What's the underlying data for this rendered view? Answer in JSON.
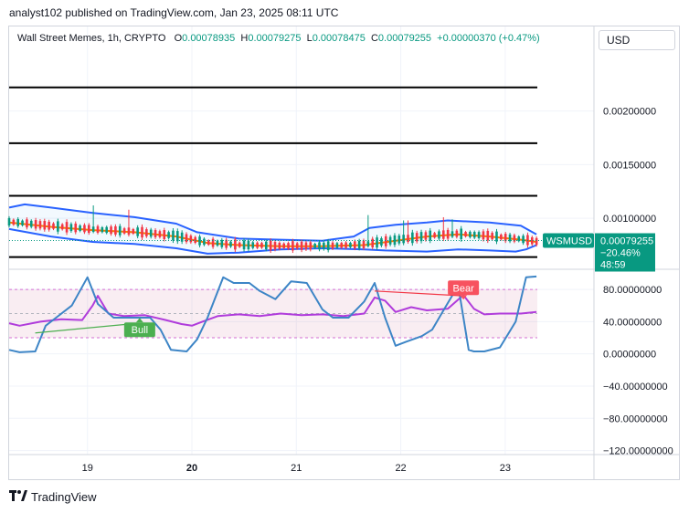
{
  "header": {
    "publisher": "analyst102 published on TradingView.com, Jan 23, 2025 08:11 UTC"
  },
  "legend": {
    "symbol": "Wall Street Memes, 1h, CRYPTO",
    "o_label": "O",
    "o_value": "0.00078935",
    "h_label": "H",
    "h_value": "0.00079275",
    "l_label": "L",
    "l_value": "0.00078475",
    "c_label": "C",
    "c_value": "0.00079255",
    "change": "+0.00000370 (+0.47%)"
  },
  "currency": "USD",
  "price_tag": {
    "symbol": "WSMUSD",
    "price": "0.00079255",
    "change": "−20.46%",
    "countdown": "48:59"
  },
  "brand": {
    "name": "TradingView"
  },
  "colors": {
    "bull": "#089981",
    "bear": "#f23645",
    "bb_band": "#2962ff",
    "bb_basis": "#f57c00",
    "rsi": "#b03cdb",
    "stoch": "#3d85c6",
    "grid": "#f0f3fa"
  },
  "chart_data": [
    {
      "type": "line",
      "pane": "price",
      "title": "",
      "y_ticks": [
        "0.00200000",
        "0.00150000",
        "0.00100000"
      ],
      "y_tick_values": [
        0.002,
        0.0015,
        0.001
      ],
      "ylim": [
        0.00055,
        0.00255
      ],
      "x_ticks": [
        "19",
        "20",
        "21",
        "22",
        "23"
      ],
      "x_tick_positions": [
        0.75,
        1.75,
        2.75,
        3.75,
        4.75
      ],
      "xlim": [
        0,
        5.6
      ],
      "horizontal_levels": [
        0.00222,
        0.0017,
        0.00121,
        0.000638
      ],
      "series": [
        {
          "name": "Upper Band",
          "x": [
            0,
            0.15,
            0.4,
            0.8,
            1.2,
            1.6,
            1.8,
            2.2,
            2.6,
            3.0,
            3.3,
            3.45,
            3.7,
            4.0,
            4.2,
            4.6,
            4.9,
            5.05
          ],
          "values": [
            0.0011,
            0.00113,
            0.0011,
            0.00105,
            0.00101,
            0.00095,
            0.00087,
            0.00081,
            0.0008,
            0.00079,
            0.00083,
            0.00091,
            0.00094,
            0.00096,
            0.00098,
            0.00096,
            0.00093,
            0.00085
          ]
        },
        {
          "name": "Basis",
          "x": [
            0,
            0.4,
            0.8,
            1.2,
            1.6,
            1.9,
            2.2,
            2.6,
            3.0,
            3.4,
            3.7,
            4.0,
            4.3,
            4.6,
            4.9,
            5.05
          ],
          "values": [
            0.00096,
            0.00092,
            0.00089,
            0.00087,
            0.00083,
            0.00077,
            0.00075,
            0.00074,
            0.00074,
            0.00075,
            0.00079,
            0.00083,
            0.00085,
            0.00083,
            0.0008,
            0.00078
          ]
        },
        {
          "name": "Lower Band",
          "x": [
            0,
            0.4,
            0.8,
            1.2,
            1.6,
            1.9,
            2.2,
            2.6,
            3.0,
            3.4,
            3.6,
            4.0,
            4.3,
            4.6,
            4.85,
            4.95,
            5.05
          ],
          "values": [
            0.0009,
            0.00083,
            0.00078,
            0.00076,
            0.00072,
            0.00067,
            0.00068,
            0.00071,
            0.00072,
            0.00071,
            0.0007,
            0.00069,
            0.00071,
            0.0007,
            0.00069,
            0.00071,
            0.00075
          ]
        }
      ],
      "price_line": 0.00079255
    },
    {
      "type": "line",
      "pane": "oscillator",
      "y_ticks": [
        "80.00000000",
        "40.00000000",
        "0.00000000",
        "−40.00000000",
        "−80.00000000",
        "−120.00000000"
      ],
      "y_tick_values": [
        80,
        40,
        0,
        -40,
        -80,
        -120
      ],
      "ylim": [
        -125,
        105
      ],
      "bands": {
        "upper": 80,
        "middle": 50,
        "lower": 20
      },
      "series": [
        {
          "name": "RSI",
          "x": [
            0,
            0.1,
            0.3,
            0.5,
            0.7,
            0.8,
            0.85,
            0.95,
            1.1,
            1.3,
            1.5,
            1.65,
            1.75,
            1.85,
            2.0,
            2.2,
            2.4,
            2.6,
            2.8,
            3.0,
            3.2,
            3.4,
            3.5,
            3.6,
            3.7,
            3.85,
            4.0,
            4.2,
            4.35,
            4.45,
            4.55,
            4.7,
            4.9,
            5.05
          ],
          "values": [
            38,
            35,
            40,
            43,
            42,
            60,
            72,
            50,
            47,
            48,
            42,
            37,
            35,
            40,
            47,
            49,
            47,
            50,
            48,
            49,
            47,
            50,
            70,
            66,
            52,
            58,
            54,
            56,
            73,
            56,
            49,
            50,
            50,
            52
          ]
        },
        {
          "name": "Stoch %K",
          "x": [
            0,
            0.1,
            0.25,
            0.35,
            0.45,
            0.6,
            0.75,
            0.85,
            1.0,
            1.2,
            1.35,
            1.45,
            1.55,
            1.7,
            1.8,
            1.9,
            2.05,
            2.15,
            2.3,
            2.4,
            2.55,
            2.7,
            2.85,
            3.0,
            3.1,
            3.25,
            3.4,
            3.5,
            3.6,
            3.7,
            3.8,
            3.95,
            4.05,
            4.15,
            4.3,
            4.4,
            4.45,
            4.55,
            4.7,
            4.85,
            4.95,
            5.05
          ],
          "values": [
            5,
            2,
            3,
            35,
            45,
            60,
            95,
            62,
            45,
            45,
            45,
            30,
            5,
            3,
            18,
            45,
            95,
            88,
            88,
            78,
            68,
            90,
            88,
            55,
            45,
            45,
            65,
            88,
            45,
            10,
            15,
            22,
            30,
            52,
            85,
            5,
            3,
            3,
            8,
            40,
            95,
            96
          ]
        }
      ],
      "annotations": [
        {
          "label": "Bull",
          "x": 1.25,
          "y": 30
        },
        {
          "label": "Bear",
          "x": 4.35,
          "y": 82
        }
      ],
      "trendlines": [
        {
          "name": "bull",
          "x": [
            0.25,
            1.15
          ],
          "y": [
            26,
            37
          ]
        },
        {
          "name": "bear",
          "x": [
            3.5,
            4.35
          ],
          "y": [
            78,
            72
          ]
        }
      ]
    }
  ]
}
